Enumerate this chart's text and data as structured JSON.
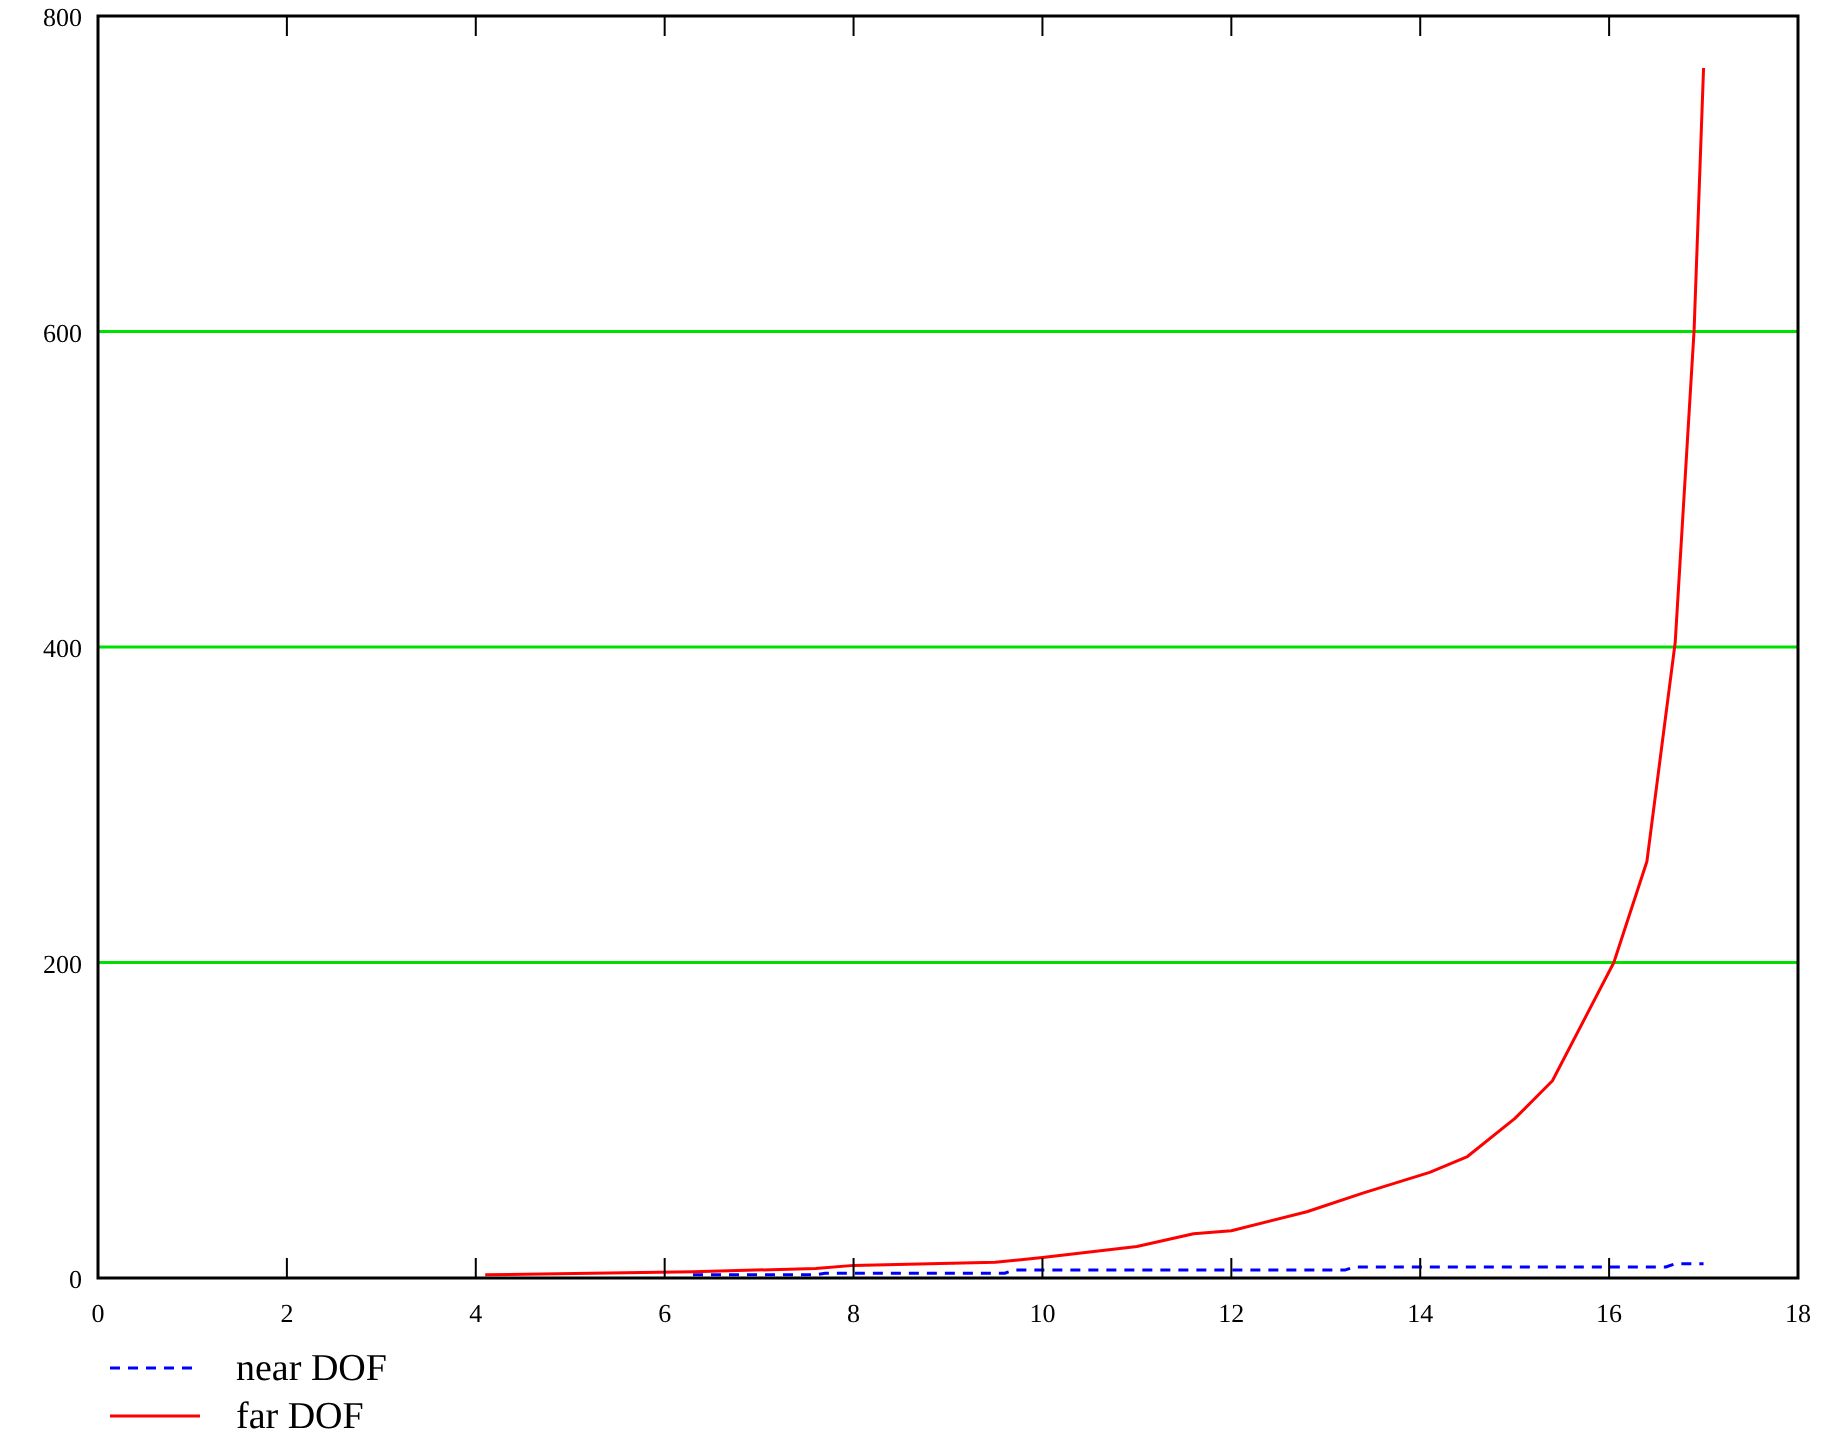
{
  "chart_data": {
    "type": "line",
    "xlim": [
      0,
      18
    ],
    "ylim": [
      0,
      800
    ],
    "xticks": [
      0,
      2,
      4,
      6,
      8,
      10,
      12,
      14,
      16,
      18
    ],
    "yticks": [
      0,
      200,
      400,
      600,
      800
    ],
    "grid": "y",
    "legend": "bottom left",
    "series": [
      {
        "name": "near DOF",
        "color": "#0000ff",
        "line_style": "dashed",
        "x": [
          6.3,
          7.6,
          7.7,
          9.6,
          9.7,
          13.2,
          13.3,
          16.6,
          16.7,
          17
        ],
        "values": [
          2,
          2,
          3,
          3,
          5,
          5,
          7,
          7,
          9,
          9
        ]
      },
      {
        "name": "far DOF",
        "color": "#ff0000",
        "line_style": "solid",
        "x": [
          4.1,
          6.3,
          7.6,
          8,
          9.5,
          10,
          11,
          11.6,
          12,
          12.8,
          13.4,
          14.1,
          14.5,
          15,
          15.4,
          16.05,
          16.4,
          16.7,
          16.9,
          17
        ],
        "values": [
          2,
          4,
          6,
          8,
          10,
          13,
          20,
          28,
          30,
          42,
          54,
          67,
          77,
          101,
          125,
          200,
          264,
          403,
          601,
          767
        ]
      }
    ]
  }
}
